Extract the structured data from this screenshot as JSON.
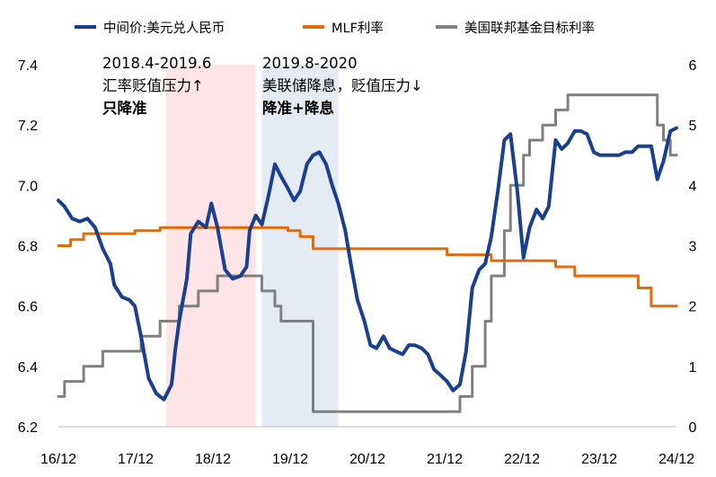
{
  "chart_data": {
    "type": "line",
    "title": "",
    "x": [
      "16/12",
      "17/12",
      "18/12",
      "19/12",
      "20/12",
      "21/12",
      "22/12",
      "23/12",
      "24/12"
    ],
    "legend": [
      {
        "name": "中间价:美元兑人民币",
        "color": "#1a3f8f",
        "axis": "left"
      },
      {
        "name": "MLF利率",
        "color": "#e36c0a",
        "axis": "right"
      },
      {
        "name": "美国联邦基金目标利率",
        "color": "#808080",
        "axis": "right"
      }
    ],
    "left_axis": {
      "ylim": [
        6.2,
        7.4
      ],
      "ticks": [
        "6.2",
        "6.4",
        "6.6",
        "6.8",
        "7.0",
        "7.2",
        "7.4"
      ]
    },
    "right_axis": {
      "ylim": [
        0,
        6
      ],
      "ticks": [
        "0",
        "1",
        "2",
        "3",
        "4",
        "5",
        "6"
      ]
    },
    "series": [
      {
        "name": "中间价:美元兑人民币",
        "axis": "left",
        "color": "#1a3f8f",
        "points": [
          [
            2016.92,
            6.95
          ],
          [
            2017.0,
            6.93
          ],
          [
            2017.1,
            6.89
          ],
          [
            2017.2,
            6.88
          ],
          [
            2017.3,
            6.89
          ],
          [
            2017.4,
            6.86
          ],
          [
            2017.5,
            6.79
          ],
          [
            2017.6,
            6.74
          ],
          [
            2017.65,
            6.67
          ],
          [
            2017.75,
            6.63
          ],
          [
            2017.85,
            6.62
          ],
          [
            2017.92,
            6.6
          ],
          [
            2018.0,
            6.5
          ],
          [
            2018.1,
            6.36
          ],
          [
            2018.2,
            6.31
          ],
          [
            2018.3,
            6.29
          ],
          [
            2018.4,
            6.34
          ],
          [
            2018.45,
            6.46
          ],
          [
            2018.5,
            6.55
          ],
          [
            2018.6,
            6.69
          ],
          [
            2018.65,
            6.84
          ],
          [
            2018.75,
            6.88
          ],
          [
            2018.85,
            6.86
          ],
          [
            2018.92,
            6.94
          ],
          [
            2019.0,
            6.86
          ],
          [
            2019.1,
            6.72
          ],
          [
            2019.2,
            6.69
          ],
          [
            2019.3,
            6.7
          ],
          [
            2019.38,
            6.73
          ],
          [
            2019.42,
            6.85
          ],
          [
            2019.5,
            6.9
          ],
          [
            2019.58,
            6.87
          ],
          [
            2019.67,
            6.97
          ],
          [
            2019.75,
            7.07
          ],
          [
            2019.83,
            7.03
          ],
          [
            2019.92,
            6.99
          ],
          [
            2020.0,
            6.95
          ],
          [
            2020.08,
            6.98
          ],
          [
            2020.17,
            7.07
          ],
          [
            2020.25,
            7.1
          ],
          [
            2020.33,
            7.11
          ],
          [
            2020.42,
            7.07
          ],
          [
            2020.5,
            7.0
          ],
          [
            2020.58,
            6.94
          ],
          [
            2020.67,
            6.85
          ],
          [
            2020.75,
            6.73
          ],
          [
            2020.83,
            6.62
          ],
          [
            2020.92,
            6.55
          ],
          [
            2021.0,
            6.47
          ],
          [
            2021.08,
            6.46
          ],
          [
            2021.17,
            6.5
          ],
          [
            2021.25,
            6.46
          ],
          [
            2021.33,
            6.45
          ],
          [
            2021.42,
            6.44
          ],
          [
            2021.5,
            6.47
          ],
          [
            2021.58,
            6.47
          ],
          [
            2021.67,
            6.46
          ],
          [
            2021.75,
            6.44
          ],
          [
            2021.83,
            6.39
          ],
          [
            2021.92,
            6.37
          ],
          [
            2022.0,
            6.35
          ],
          [
            2022.08,
            6.32
          ],
          [
            2022.17,
            6.34
          ],
          [
            2022.25,
            6.45
          ],
          [
            2022.33,
            6.66
          ],
          [
            2022.42,
            6.72
          ],
          [
            2022.5,
            6.74
          ],
          [
            2022.58,
            6.83
          ],
          [
            2022.67,
            6.99
          ],
          [
            2022.75,
            7.15
          ],
          [
            2022.83,
            7.17
          ],
          [
            2022.92,
            6.98
          ],
          [
            2023.0,
            6.76
          ],
          [
            2023.08,
            6.86
          ],
          [
            2023.17,
            6.92
          ],
          [
            2023.25,
            6.89
          ],
          [
            2023.33,
            6.93
          ],
          [
            2023.42,
            7.15
          ],
          [
            2023.5,
            7.12
          ],
          [
            2023.58,
            7.14
          ],
          [
            2023.67,
            7.18
          ],
          [
            2023.75,
            7.18
          ],
          [
            2023.83,
            7.17
          ],
          [
            2023.92,
            7.11
          ],
          [
            2024.0,
            7.1
          ],
          [
            2024.08,
            7.1
          ],
          [
            2024.17,
            7.1
          ],
          [
            2024.25,
            7.1
          ],
          [
            2024.33,
            7.11
          ],
          [
            2024.42,
            7.11
          ],
          [
            2024.5,
            7.13
          ],
          [
            2024.58,
            7.13
          ],
          [
            2024.67,
            7.13
          ],
          [
            2024.75,
            7.02
          ],
          [
            2024.83,
            7.08
          ],
          [
            2024.92,
            7.18
          ],
          [
            2025.0,
            7.19
          ]
        ]
      },
      {
        "name": "MLF利率",
        "axis": "right",
        "color": "#e36c0a",
        "points": [
          [
            2016.92,
            3.0
          ],
          [
            2017.08,
            3.1
          ],
          [
            2017.25,
            3.2
          ],
          [
            2017.92,
            3.25
          ],
          [
            2018.25,
            3.3
          ],
          [
            2019.92,
            3.25
          ],
          [
            2020.08,
            3.15
          ],
          [
            2020.25,
            2.95
          ],
          [
            2022.0,
            2.85
          ],
          [
            2022.58,
            2.75
          ],
          [
            2023.42,
            2.65
          ],
          [
            2023.67,
            2.5
          ],
          [
            2024.5,
            2.3
          ],
          [
            2024.67,
            2.0
          ],
          [
            2025.0,
            2.0
          ]
        ]
      },
      {
        "name": "美国联邦基金目标利率",
        "axis": "right",
        "color": "#808080",
        "points": [
          [
            2016.92,
            0.5
          ],
          [
            2017.0,
            0.75
          ],
          [
            2017.25,
            1.0
          ],
          [
            2017.5,
            1.25
          ],
          [
            2018.0,
            1.5
          ],
          [
            2018.25,
            1.75
          ],
          [
            2018.5,
            2.0
          ],
          [
            2018.75,
            2.25
          ],
          [
            2019.0,
            2.5
          ],
          [
            2019.58,
            2.25
          ],
          [
            2019.75,
            2.0
          ],
          [
            2019.83,
            1.75
          ],
          [
            2020.17,
            1.75
          ],
          [
            2020.25,
            0.25
          ],
          [
            2022.17,
            0.5
          ],
          [
            2022.33,
            1.0
          ],
          [
            2022.5,
            1.75
          ],
          [
            2022.58,
            2.5
          ],
          [
            2022.75,
            3.25
          ],
          [
            2022.83,
            4.0
          ],
          [
            2023.0,
            4.5
          ],
          [
            2023.08,
            4.75
          ],
          [
            2023.25,
            5.0
          ],
          [
            2023.42,
            5.25
          ],
          [
            2023.58,
            5.5
          ],
          [
            2024.67,
            5.5
          ],
          [
            2024.75,
            5.0
          ],
          [
            2024.83,
            4.75
          ],
          [
            2024.92,
            4.5
          ],
          [
            2025.0,
            4.5
          ]
        ]
      }
    ],
    "shaded_periods": [
      {
        "start": 2018.33,
        "end": 2019.5,
        "color": "#fde4e7",
        "lines": [
          "2018.4-2019.6",
          "汇率贬值压力↑"
        ],
        "bold": "只降准"
      },
      {
        "start": 2019.58,
        "end": 2020.58,
        "color": "#e4ebf5",
        "lines": [
          "2019.8-2020",
          "美联储降息，贬值压力↓"
        ],
        "bold": "降准+降息"
      }
    ]
  }
}
